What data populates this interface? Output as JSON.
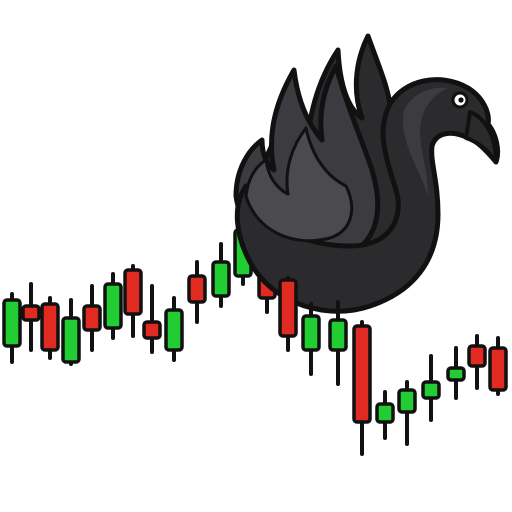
{
  "illustration": {
    "subject": "black-swan-over-candlestick-chart",
    "colors": {
      "background": "#ffffff",
      "bull": "#22cc33",
      "bear": "#e02a22",
      "outline": "#111111",
      "swan_dark": "#2b2b2e",
      "swan_mid": "#3c3c40",
      "swan_light": "#4a4a4f",
      "eye": "#ffffff"
    },
    "candles": [
      {
        "dir": "up"
      },
      {
        "dir": "down"
      },
      {
        "dir": "down"
      },
      {
        "dir": "up"
      },
      {
        "dir": "down"
      },
      {
        "dir": "up"
      },
      {
        "dir": "down"
      },
      {
        "dir": "down"
      },
      {
        "dir": "up"
      },
      {
        "dir": "down"
      },
      {
        "dir": "up"
      },
      {
        "dir": "up"
      },
      {
        "dir": "down"
      },
      {
        "dir": "down"
      },
      {
        "dir": "up"
      },
      {
        "dir": "up"
      },
      {
        "dir": "down"
      },
      {
        "dir": "up"
      },
      {
        "dir": "up"
      },
      {
        "dir": "up"
      },
      {
        "dir": "up"
      },
      {
        "dir": "down"
      },
      {
        "dir": "down"
      }
    ]
  }
}
